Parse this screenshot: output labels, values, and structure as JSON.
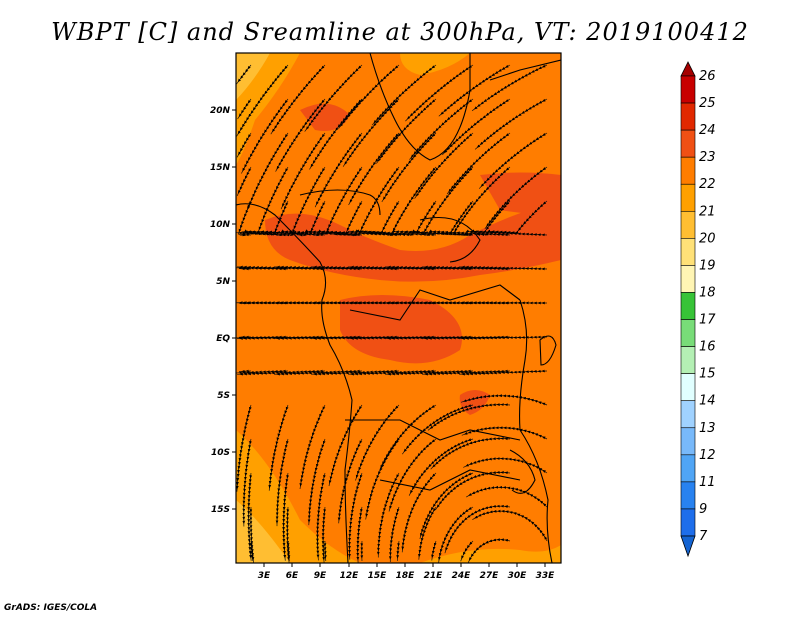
{
  "title": "WBPT [C] and Sreamline at 300hPa, VT: 2019100412",
  "credit": "GrADS: IGES/COLA",
  "map": {
    "lat_labels": [
      "20N",
      "15N",
      "10N",
      "5N",
      "EQ",
      "5S",
      "10S",
      "15S"
    ],
    "lon_labels": [
      "3E",
      "6E",
      "9E",
      "12E",
      "15E",
      "18E",
      "21E",
      "24E",
      "27E",
      "30E",
      "33E"
    ]
  },
  "colorbar": {
    "labels": [
      "26",
      "25",
      "24",
      "23",
      "22",
      "21",
      "20",
      "19",
      "18",
      "17",
      "16",
      "15",
      "14",
      "13",
      "12",
      "11",
      "9",
      "7"
    ],
    "colors": [
      "#a50000",
      "#c80000",
      "#e12800",
      "#f05014",
      "#ff7d00",
      "#ffa000",
      "#ffbe32",
      "#ffe178",
      "#fff5b4",
      "#37c337",
      "#78dc78",
      "#b4f0b4",
      "#e1ffff",
      "#a0d2ff",
      "#78b9fa",
      "#50a5f5",
      "#2882f0",
      "#1e6eeb",
      "#1464d2"
    ]
  },
  "field_colors": {
    "dominant": "#ff7d00",
    "warm": "#f05014",
    "cool": "#ffa000",
    "cooler": "#ffbe32"
  }
}
